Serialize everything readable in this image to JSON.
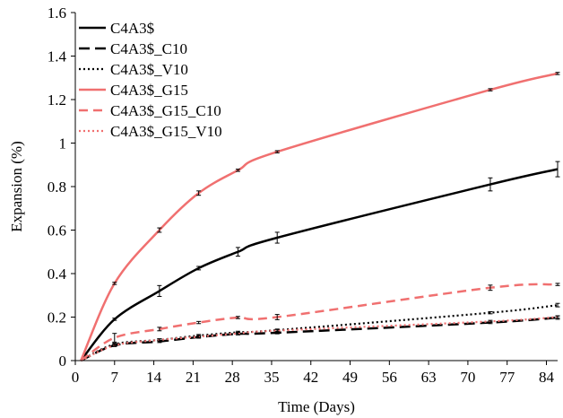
{
  "chart_data": {
    "type": "line",
    "title": "",
    "xlabel": "Time (Days)",
    "ylabel": "Expansion (%)",
    "xlim": [
      0,
      86
    ],
    "ylim": [
      0,
      1.6
    ],
    "xticks": [
      0,
      7,
      14,
      21,
      28,
      35,
      42,
      49,
      56,
      63,
      70,
      77,
      84
    ],
    "yticks": [
      0,
      0.2,
      0.4,
      0.6,
      0.8,
      1,
      1.2,
      1.4,
      1.6
    ],
    "ytick_labels": [
      "0",
      "0.2",
      "0.4",
      "0.6",
      "0.8",
      "1",
      "1.2",
      "1.4",
      "1.6"
    ],
    "grid": false,
    "legend_position": "top-left",
    "series": [
      {
        "name": "C4A3$",
        "color": "#000000",
        "dash": "solid",
        "points": [
          [
            1,
            0
          ],
          [
            7,
            0.19
          ],
          [
            15,
            0.32
          ],
          [
            22,
            0.425
          ],
          [
            29,
            0.5
          ],
          [
            36,
            0.565
          ],
          [
            74,
            0.81
          ],
          [
            86,
            0.88
          ]
        ],
        "errors": [
          0,
          0.005,
          0.025,
          0.008,
          0.02,
          0.025,
          0.03,
          0.035
        ]
      },
      {
        "name": "C4A3$_C10",
        "color": "#000000",
        "dash": "long-dash",
        "points": [
          [
            1,
            0
          ],
          [
            7,
            0.07
          ],
          [
            15,
            0.088
          ],
          [
            22,
            0.108
          ],
          [
            29,
            0.123
          ],
          [
            36,
            0.128
          ],
          [
            74,
            0.175
          ],
          [
            86,
            0.198
          ]
        ],
        "errors": [
          0,
          0.005,
          0.005,
          0.005,
          0.005,
          0.005,
          0.005,
          0.008
        ]
      },
      {
        "name": "C4A3$_V10",
        "color": "#000000",
        "dash": "dotted",
        "points": [
          [
            1,
            0
          ],
          [
            7,
            0.075
          ],
          [
            15,
            0.095
          ],
          [
            22,
            0.115
          ],
          [
            29,
            0.13
          ],
          [
            36,
            0.14
          ],
          [
            74,
            0.22
          ],
          [
            86,
            0.255
          ]
        ],
        "errors": [
          0,
          0.005,
          0.005,
          0.005,
          0.005,
          0.005,
          0.005,
          0.008
        ]
      },
      {
        "name": "C4A3$_G15",
        "color": "#f07070",
        "dash": "solid",
        "points": [
          [
            1,
            0
          ],
          [
            7,
            0.355
          ],
          [
            15,
            0.6
          ],
          [
            22,
            0.77
          ],
          [
            29,
            0.875
          ],
          [
            36,
            0.96
          ],
          [
            74,
            1.245
          ],
          [
            86,
            1.32
          ]
        ],
        "errors": [
          0,
          0.005,
          0.01,
          0.01,
          0.005,
          0.005,
          0.005,
          0.005
        ]
      },
      {
        "name": "C4A3$_G15_C10",
        "color": "#f07070",
        "dash": "dash",
        "points": [
          [
            1,
            0
          ],
          [
            7,
            0.105
          ],
          [
            15,
            0.145
          ],
          [
            22,
            0.175
          ],
          [
            29,
            0.198
          ],
          [
            36,
            0.2
          ],
          [
            74,
            0.335
          ],
          [
            86,
            0.35
          ]
        ],
        "errors": [
          0,
          0.02,
          0.008,
          0.005,
          0.005,
          0.012,
          0.012,
          0.005
        ]
      },
      {
        "name": "C4A3$_G15_V10",
        "color": "#f07070",
        "dash": "dotted",
        "points": [
          [
            1,
            0
          ],
          [
            7,
            0.07
          ],
          [
            15,
            0.095
          ],
          [
            22,
            0.11
          ],
          [
            29,
            0.125
          ],
          [
            36,
            0.138
          ],
          [
            74,
            0.18
          ],
          [
            86,
            0.2
          ]
        ],
        "errors": [
          0,
          0.005,
          0.005,
          0.005,
          0.005,
          0.005,
          0.005,
          0.005
        ]
      }
    ]
  }
}
